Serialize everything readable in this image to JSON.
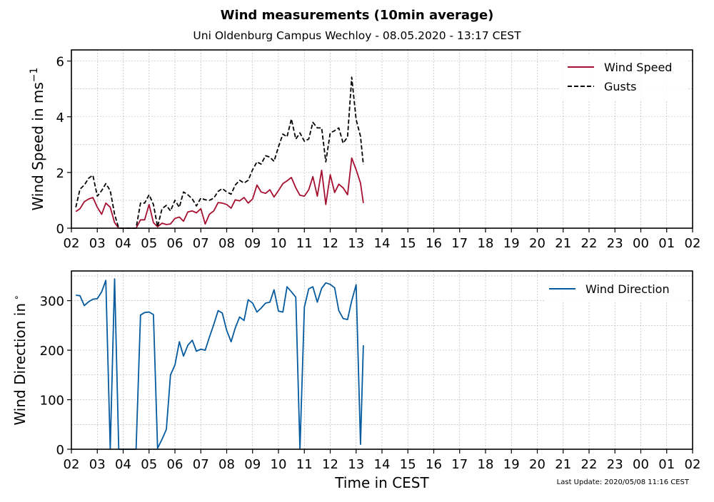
{
  "title": "Wind measurements (10min average)",
  "subtitle": "Uni Oldenburg Campus Wechloy - 08.05.2020 - 13:17 CEST",
  "footer": "Last Update: 2020/05/08 11:16 CEST",
  "chart_data": [
    {
      "type": "line",
      "ylabel_main": "Wind Speed in ms",
      "ylabel_sup": "−1",
      "xlabel": "",
      "xlim": [
        2,
        26
      ],
      "ylim": [
        0,
        6.4
      ],
      "yticks": [
        0,
        2,
        4,
        6
      ],
      "grid": true,
      "legend_position": "top-right",
      "series": [
        {
          "name": "Wind Speed",
          "color": "#a50f2f",
          "style": "solid",
          "x": [
            2.17,
            2.33,
            2.5,
            2.67,
            2.83,
            3.0,
            3.17,
            3.33,
            3.5,
            3.67,
            3.83,
            4.0,
            4.17,
            4.33,
            4.5,
            4.67,
            4.83,
            5.0,
            5.17,
            5.33,
            5.5,
            5.67,
            5.83,
            6.0,
            6.17,
            6.33,
            6.5,
            6.67,
            6.83,
            7.0,
            7.17,
            7.33,
            7.5,
            7.67,
            7.83,
            8.0,
            8.17,
            8.33,
            8.5,
            8.67,
            8.83,
            9.0,
            9.17,
            9.33,
            9.5,
            9.67,
            9.83,
            10.0,
            10.17,
            10.33,
            10.5,
            10.67,
            10.83,
            11.0,
            11.17,
            11.33,
            11.5,
            11.67,
            11.83,
            12.0,
            12.17,
            12.33,
            12.5,
            12.67,
            12.83,
            13.0,
            13.17,
            13.28
          ],
          "y": [
            0.6,
            0.7,
            0.95,
            1.05,
            1.1,
            0.75,
            0.5,
            0.9,
            0.75,
            0.2,
            0.0,
            0.0,
            0.0,
            0.0,
            0.0,
            0.3,
            0.3,
            0.85,
            0.2,
            0.05,
            0.18,
            0.13,
            0.15,
            0.35,
            0.4,
            0.25,
            0.58,
            0.62,
            0.55,
            0.7,
            0.15,
            0.5,
            0.62,
            0.92,
            0.9,
            0.85,
            0.72,
            1.02,
            0.98,
            1.1,
            0.9,
            1.05,
            1.55,
            1.3,
            1.25,
            1.38,
            1.12,
            1.35,
            1.6,
            1.7,
            1.82,
            1.45,
            1.18,
            1.15,
            1.38,
            1.85,
            1.15,
            2.08,
            0.85,
            1.92,
            1.28,
            1.58,
            1.45,
            1.2,
            2.52,
            2.1,
            1.62,
            0.9
          ]
        },
        {
          "name": "Gusts",
          "color": "#000000",
          "style": "dashed",
          "x": [
            2.17,
            2.33,
            2.5,
            2.67,
            2.83,
            3.0,
            3.17,
            3.33,
            3.5,
            3.67,
            3.83,
            4.0,
            4.17,
            4.33,
            4.5,
            4.67,
            4.83,
            5.0,
            5.17,
            5.33,
            5.5,
            5.67,
            5.83,
            6.0,
            6.17,
            6.33,
            6.5,
            6.67,
            6.83,
            7.0,
            7.17,
            7.33,
            7.5,
            7.67,
            7.83,
            8.0,
            8.17,
            8.33,
            8.5,
            8.67,
            8.83,
            9.0,
            9.17,
            9.33,
            9.5,
            9.67,
            9.83,
            10.0,
            10.17,
            10.33,
            10.5,
            10.67,
            10.83,
            11.0,
            11.17,
            11.33,
            11.5,
            11.67,
            11.83,
            12.0,
            12.17,
            12.33,
            12.5,
            12.67,
            12.83,
            13.0,
            13.17,
            13.28
          ],
          "y": [
            0.75,
            1.4,
            1.55,
            1.8,
            1.9,
            1.15,
            1.35,
            1.6,
            1.35,
            0.5,
            0.0,
            0.0,
            0.0,
            0.0,
            0.0,
            0.9,
            0.9,
            1.2,
            0.85,
            0.05,
            0.7,
            0.82,
            0.62,
            1.0,
            0.75,
            1.3,
            1.2,
            1.05,
            0.8,
            1.08,
            1.02,
            1.0,
            1.08,
            1.32,
            1.42,
            1.3,
            1.22,
            1.55,
            1.72,
            1.62,
            1.72,
            2.1,
            2.38,
            2.3,
            2.6,
            2.55,
            2.4,
            2.92,
            3.38,
            3.28,
            3.92,
            3.2,
            3.42,
            3.12,
            3.2,
            3.8,
            3.6,
            3.6,
            2.38,
            3.42,
            3.5,
            3.6,
            3.05,
            3.28,
            5.42,
            3.9,
            3.3,
            2.28
          ]
        }
      ]
    },
    {
      "type": "line",
      "ylabel_main": "Wind Direction in",
      "ylabel_sup": "∘",
      "xlabel": "Time in CEST",
      "xlim": [
        2,
        26
      ],
      "ylim": [
        0,
        360
      ],
      "yticks": [
        0,
        100,
        200,
        300
      ],
      "grid": true,
      "legend_position": "top-right",
      "series": [
        {
          "name": "Wind Direction",
          "color": "#045a9f",
          "style": "solid",
          "x": [
            2.17,
            2.33,
            2.5,
            2.67,
            2.83,
            3.0,
            3.17,
            3.33,
            3.5,
            3.67,
            3.83,
            4.0,
            4.17,
            4.33,
            4.5,
            4.67,
            4.83,
            5.0,
            5.17,
            5.33,
            5.5,
            5.67,
            5.83,
            6.0,
            6.17,
            6.33,
            6.5,
            6.67,
            6.83,
            7.0,
            7.17,
            7.33,
            7.5,
            7.67,
            7.83,
            8.0,
            8.17,
            8.33,
            8.5,
            8.67,
            8.83,
            9.0,
            9.17,
            9.33,
            9.5,
            9.67,
            9.83,
            10.0,
            10.17,
            10.33,
            10.5,
            10.67,
            10.83,
            11.0,
            11.17,
            11.33,
            11.5,
            11.67,
            11.83,
            12.0,
            12.17,
            12.33,
            12.5,
            12.67,
            12.83,
            13.0,
            13.17,
            13.28
          ],
          "y": [
            311,
            310,
            290,
            298,
            303,
            304,
            318,
            341,
            0,
            344,
            0,
            0,
            0,
            0,
            0,
            271,
            276,
            277,
            272,
            2,
            20,
            40,
            150,
            170,
            217,
            188,
            210,
            220,
            198,
            202,
            200,
            226,
            252,
            280,
            275,
            240,
            217,
            245,
            267,
            260,
            302,
            295,
            277,
            285,
            295,
            297,
            322,
            279,
            277,
            328,
            318,
            307,
            0,
            287,
            324,
            328,
            297,
            325,
            336,
            333,
            326,
            280,
            264,
            262,
            300,
            332,
            10,
            210
          ]
        }
      ]
    }
  ],
  "xtick_labels": [
    "02",
    "03",
    "04",
    "05",
    "06",
    "07",
    "08",
    "09",
    "10",
    "11",
    "12",
    "13",
    "14",
    "15",
    "16",
    "17",
    "18",
    "19",
    "20",
    "21",
    "22",
    "23",
    "00",
    "01",
    "02"
  ]
}
